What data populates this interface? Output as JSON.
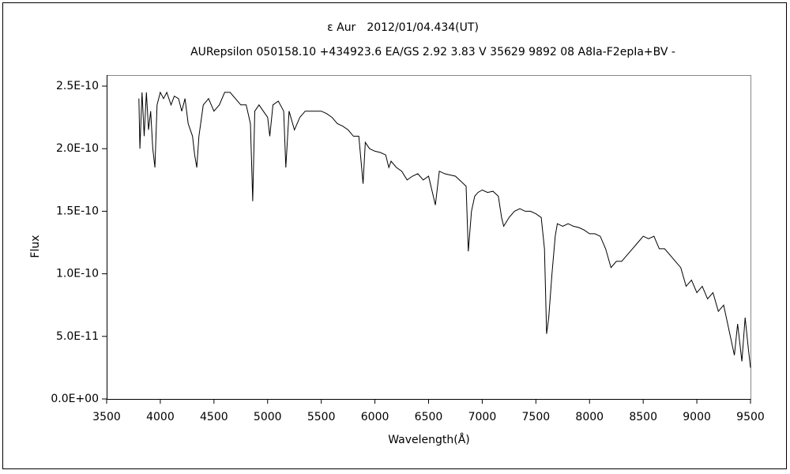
{
  "chart_data": {
    "type": "line",
    "title": "ε Aur　2012/01/04.434(UT)",
    "subtitle": "AURepsilon 050158.10 +434923.6 EA/GS 2.92 3.83 V 35629 9892 08 A8Ia-F2epIa+BV -",
    "xlabel": "Wavelength(Å)",
    "ylabel": "Flux",
    "color": "#000000",
    "xlim": [
      3500,
      9500
    ],
    "xticks": [
      3500,
      4000,
      4500,
      5000,
      5500,
      6000,
      6500,
      7000,
      7500,
      8000,
      8500,
      9000,
      9500
    ],
    "ylim": [
      0,
      2.5e-10
    ],
    "yticks": [
      {
        "value": 0,
        "label": "0.0E+00"
      },
      {
        "value": 5e-11,
        "label": "5.0E-11"
      },
      {
        "value": 1e-10,
        "label": "1.0E-10"
      },
      {
        "value": 1.5e-10,
        "label": "1.5E-10"
      },
      {
        "value": 2e-10,
        "label": "2.0E-10"
      },
      {
        "value": 2.5e-10,
        "label": "2.5E-10"
      }
    ],
    "x": [
      3800,
      3810,
      3830,
      3850,
      3870,
      3890,
      3910,
      3930,
      3950,
      3970,
      4000,
      4030,
      4060,
      4100,
      4130,
      4170,
      4200,
      4230,
      4260,
      4300,
      4320,
      4340,
      4360,
      4400,
      4450,
      4500,
      4550,
      4600,
      4650,
      4700,
      4750,
      4800,
      4840,
      4861,
      4880,
      4920,
      4960,
      5000,
      5020,
      5050,
      5100,
      5150,
      5170,
      5200,
      5250,
      5300,
      5350,
      5400,
      5450,
      5500,
      5550,
      5600,
      5650,
      5700,
      5750,
      5800,
      5850,
      5890,
      5910,
      5950,
      6000,
      6050,
      6100,
      6130,
      6150,
      6200,
      6250,
      6300,
      6350,
      6400,
      6450,
      6500,
      6563,
      6600,
      6650,
      6700,
      6750,
      6800,
      6850,
      6870,
      6900,
      6930,
      6960,
      7000,
      7050,
      7100,
      7150,
      7180,
      7200,
      7250,
      7300,
      7350,
      7400,
      7450,
      7500,
      7550,
      7580,
      7600,
      7620,
      7650,
      7680,
      7700,
      7750,
      7800,
      7850,
      7900,
      7950,
      8000,
      8050,
      8100,
      8150,
      8200,
      8250,
      8300,
      8350,
      8400,
      8450,
      8500,
      8550,
      8600,
      8650,
      8700,
      8750,
      8800,
      8850,
      8900,
      8950,
      9000,
      9050,
      9100,
      9150,
      9200,
      9250,
      9300,
      9350,
      9380,
      9400,
      9420,
      9450,
      9480,
      9500
    ],
    "values": [
      2.4e-10,
      2e-10,
      2.45e-10,
      2.1e-10,
      2.45e-10,
      2.15e-10,
      2.3e-10,
      2e-10,
      1.85e-10,
      2.35e-10,
      2.45e-10,
      2.4e-10,
      2.45e-10,
      2.35e-10,
      2.42e-10,
      2.4e-10,
      2.3e-10,
      2.4e-10,
      2.2e-10,
      2.1e-10,
      1.95e-10,
      1.85e-10,
      2.1e-10,
      2.35e-10,
      2.4e-10,
      2.3e-10,
      2.35e-10,
      2.45e-10,
      2.45e-10,
      2.4e-10,
      2.35e-10,
      2.35e-10,
      2.2e-10,
      1.58e-10,
      2.3e-10,
      2.35e-10,
      2.3e-10,
      2.25e-10,
      2.1e-10,
      2.35e-10,
      2.38e-10,
      2.3e-10,
      1.85e-10,
      2.3e-10,
      2.15e-10,
      2.25e-10,
      2.3e-10,
      2.3e-10,
      2.3e-10,
      2.3e-10,
      2.28e-10,
      2.25e-10,
      2.2e-10,
      2.18e-10,
      2.15e-10,
      2.1e-10,
      2.1e-10,
      1.72e-10,
      2.05e-10,
      2e-10,
      1.98e-10,
      1.97e-10,
      1.95e-10,
      1.85e-10,
      1.9e-10,
      1.85e-10,
      1.82e-10,
      1.75e-10,
      1.78e-10,
      1.8e-10,
      1.75e-10,
      1.78e-10,
      1.55e-10,
      1.82e-10,
      1.8e-10,
      1.79e-10,
      1.78e-10,
      1.74e-10,
      1.7e-10,
      1.18e-10,
      1.5e-10,
      1.62e-10,
      1.65e-10,
      1.67e-10,
      1.65e-10,
      1.66e-10,
      1.62e-10,
      1.45e-10,
      1.38e-10,
      1.45e-10,
      1.5e-10,
      1.52e-10,
      1.5e-10,
      1.5e-10,
      1.48e-10,
      1.45e-10,
      1.2e-10,
      5.2e-11,
      6.5e-11,
      1e-10,
      1.3e-10,
      1.4e-10,
      1.38e-10,
      1.4e-10,
      1.38e-10,
      1.37e-10,
      1.35e-10,
      1.32e-10,
      1.32e-10,
      1.3e-10,
      1.2e-10,
      1.05e-10,
      1.1e-10,
      1.1e-10,
      1.15e-10,
      1.2e-10,
      1.25e-10,
      1.3e-10,
      1.28e-10,
      1.3e-10,
      1.2e-10,
      1.2e-10,
      1.15e-10,
      1.1e-10,
      1.05e-10,
      9e-11,
      9.5e-11,
      8.5e-11,
      9e-11,
      8e-11,
      8.5e-11,
      7e-11,
      7.5e-11,
      5.5e-11,
      3.5e-11,
      6e-11,
      4.5e-11,
      3e-11,
      6.5e-11,
      4e-11,
      2.5e-11
    ]
  }
}
